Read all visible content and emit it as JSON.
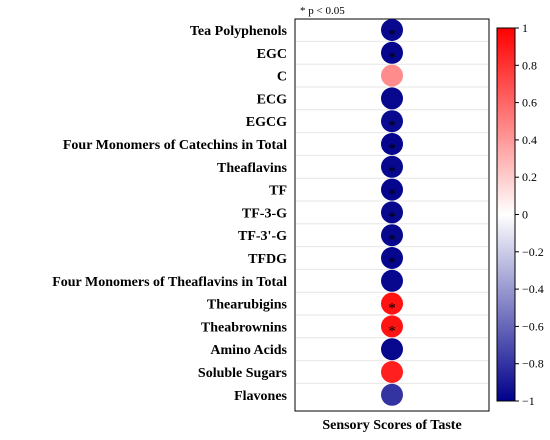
{
  "chart_data": {
    "type": "heatmap",
    "marker": "circle",
    "significance_note": "* p < 0.05",
    "column_label": "Sensory Scores of Taste",
    "row_labels": [
      "Tea Polyphenols",
      "EGC",
      "C",
      "ECG",
      "EGCG",
      "Four Monomers of Catechins in Total",
      "Theaflavins",
      "TF",
      "TF-3-G",
      "TF-3'-G",
      "TFDG",
      "Four Monomers of Theaflavins in Total",
      "Thearubigins",
      "Theabrownins",
      "Amino Acids",
      "Soluble Sugars",
      "Flavones"
    ],
    "values": [
      -0.97,
      -0.98,
      0.45,
      -0.97,
      -0.96,
      -0.98,
      -0.97,
      -0.98,
      -0.97,
      -0.97,
      -0.98,
      -0.97,
      0.93,
      0.92,
      -0.97,
      0.88,
      -0.8
    ],
    "significant": [
      true,
      true,
      false,
      false,
      true,
      true,
      true,
      true,
      true,
      true,
      true,
      false,
      true,
      true,
      false,
      false,
      false
    ],
    "colorbar": {
      "min": -1,
      "max": 1,
      "ticks": [
        1,
        0.8,
        0.6,
        0.4,
        0.2,
        0,
        -0.2,
        -0.4,
        -0.6,
        -0.8,
        -1
      ],
      "tick_labels": [
        "1",
        "0.8",
        "0.6",
        "0.4",
        "0.2",
        "0",
        "−0.2",
        "−0.4",
        "−0.6",
        "−0.8",
        "−1"
      ],
      "colors": {
        "negative": "#00008B",
        "zero": "#FFFFFF",
        "positive": "#FF0000"
      }
    }
  }
}
